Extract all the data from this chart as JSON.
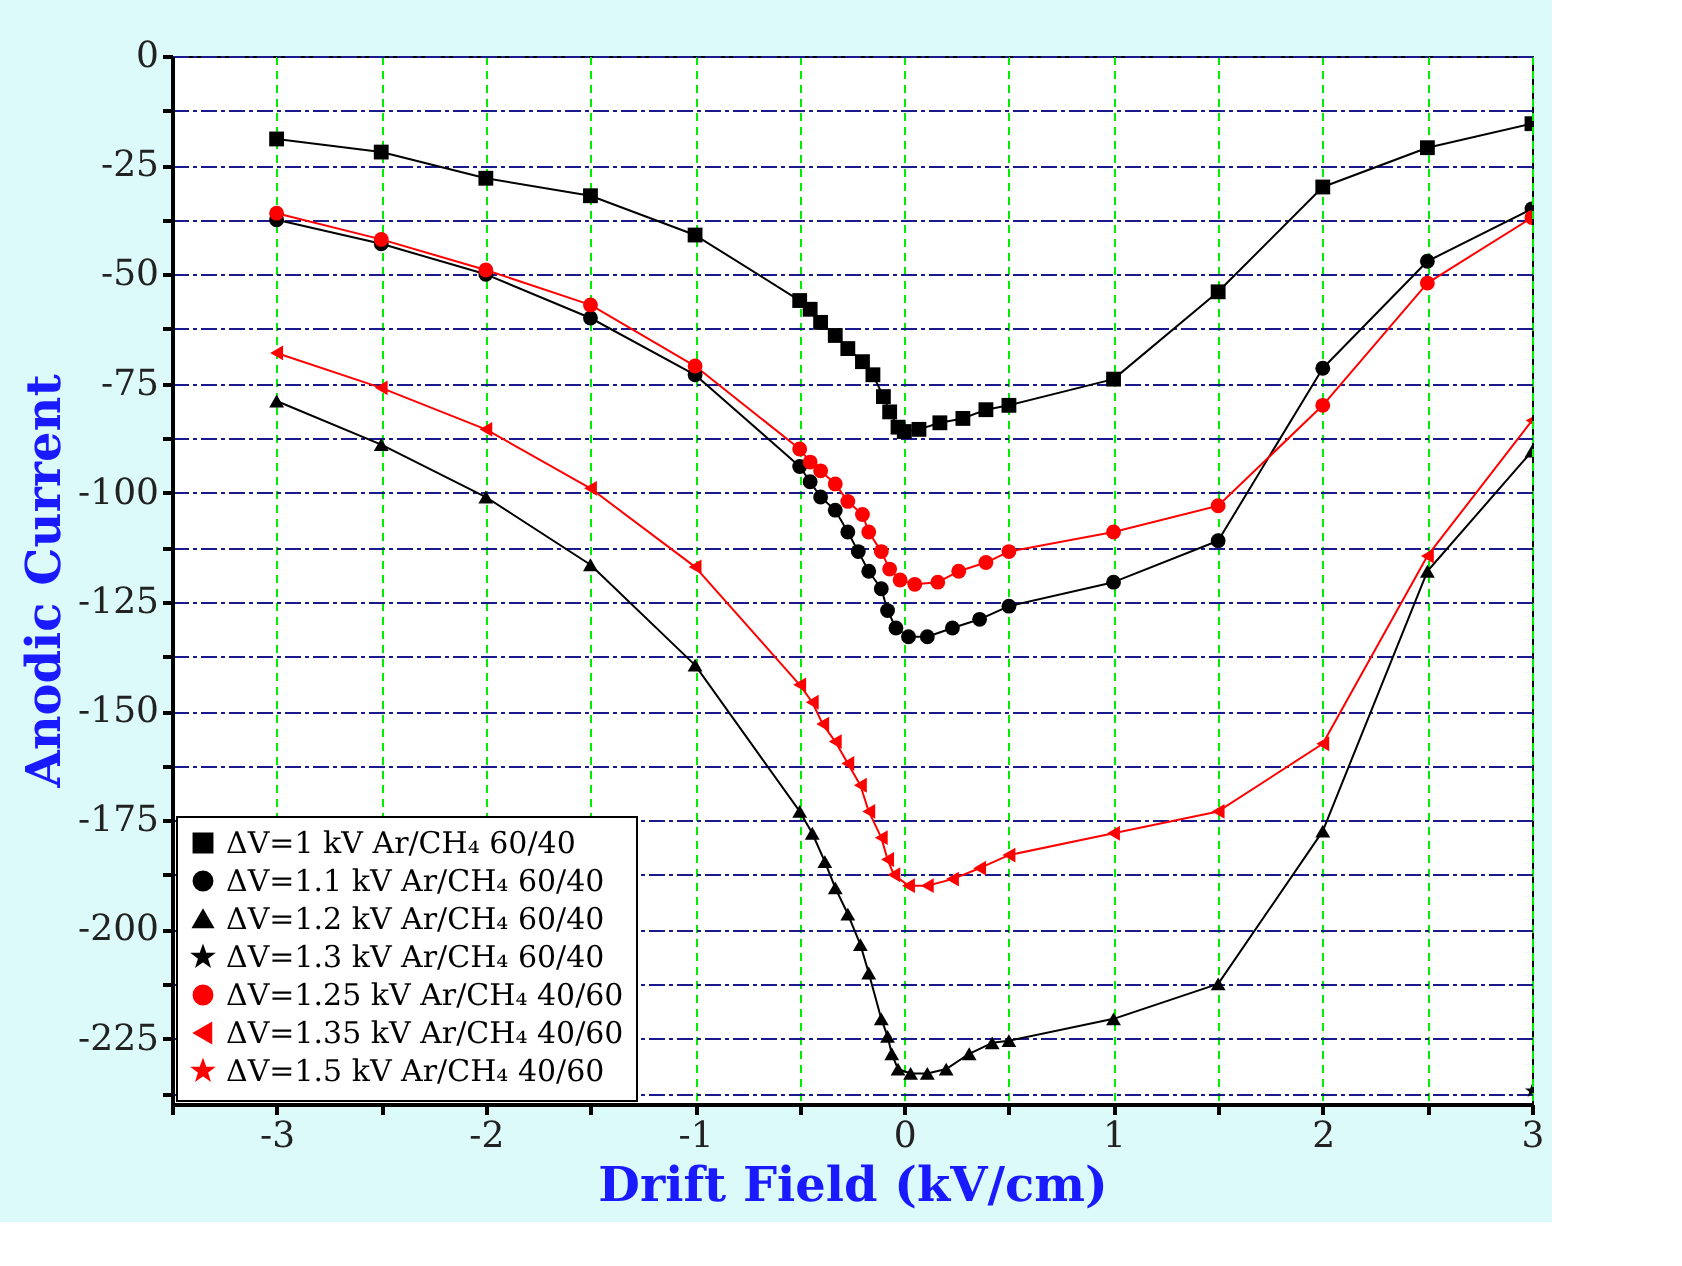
{
  "chart_data": {
    "type": "line",
    "xlabel": "Drift Field (kV/cm)",
    "ylabel": "Anodic Current",
    "xlim": [
      -3.5,
      3
    ],
    "ylim": [
      -240,
      0
    ],
    "xticks": [
      {
        "value": -3.5,
        "label": null
      },
      -3,
      {
        "value": -2.5,
        "label": null
      },
      -2,
      {
        "value": -1.5,
        "label": null
      },
      -1,
      {
        "value": -0.5,
        "label": null
      },
      0,
      {
        "value": 0.5,
        "label": null
      },
      1,
      {
        "value": 1.5,
        "label": null
      },
      2,
      {
        "value": 2.5,
        "label": null
      },
      3
    ],
    "yticks": [
      -225,
      {
        "value": -212.5,
        "label": null
      },
      -200,
      {
        "value": -187.5,
        "label": null
      },
      -175,
      {
        "value": -162.5,
        "label": null
      },
      -150,
      {
        "value": -137.5,
        "label": null
      },
      -125,
      {
        "value": -112.5,
        "label": null
      },
      -100,
      {
        "value": -87.5,
        "label": null
      },
      -75,
      {
        "value": -62.5,
        "label": null
      },
      -50,
      {
        "value": -37.5,
        "label": null
      },
      -25,
      {
        "value": -12.5,
        "label": null
      },
      0,
      {
        "value": -237.5,
        "label": null
      }
    ],
    "grid": true,
    "legend": "bottom left",
    "series": [
      {
        "name": "ΔV=1 kV Ar/CH₄ 60/40",
        "color": "#000000",
        "marker": "square",
        "x": [
          -3,
          -2.5,
          -2,
          -1.5,
          -1,
          -0.5,
          -0.45,
          -0.4,
          -0.33,
          -0.27,
          -0.2,
          -0.15,
          -0.1,
          -0.07,
          -0.03,
          0,
          0.07,
          0.17,
          0.28,
          0.39,
          0.5,
          1,
          1.5,
          2,
          2.5,
          3
        ],
        "values": [
          -19,
          -22,
          -28,
          -32,
          -41,
          -56,
          -58,
          -61,
          -64,
          -67,
          -70,
          -73,
          -78,
          -81.5,
          -85,
          -86,
          -85.5,
          -84,
          -83,
          -81,
          -80,
          -74,
          -54,
          -30,
          -21,
          -15.5
        ]
      },
      {
        "name": "ΔV=1.1 kV Ar/CH₄ 60/40",
        "color": "#000000",
        "marker": "circle",
        "x": [
          -3,
          -2.5,
          -2,
          -1.5,
          -1,
          -0.5,
          -0.45,
          -0.4,
          -0.33,
          -0.27,
          -0.22,
          -0.17,
          -0.11,
          -0.08,
          -0.04,
          0.02,
          0.11,
          0.23,
          0.36,
          0.5,
          1,
          1.5,
          2,
          2.5,
          3
        ],
        "values": [
          -37.5,
          -43,
          -50,
          -60,
          -73,
          -94,
          -97.5,
          -101,
          -104,
          -109,
          -113.5,
          -118,
          -122,
          -127,
          -131,
          -133,
          -133,
          -131,
          -129,
          -126,
          -120.5,
          -111,
          -71.5,
          -47,
          -35
        ]
      },
      {
        "name": "ΔV=1.2 kV Ar/CH₄ 60/40",
        "color": "#000000",
        "marker": "triangle",
        "x": [
          -3,
          -2.5,
          -2,
          -1.5,
          -1,
          -0.5,
          -0.44,
          -0.38,
          -0.33,
          -0.27,
          -0.21,
          -0.17,
          -0.11,
          -0.08,
          -0.06,
          -0.03,
          0.03,
          0.11,
          0.2,
          0.31,
          0.42,
          0.5,
          1,
          1.5,
          2,
          2.5,
          3
        ],
        "values": [
          -79,
          -89,
          -101,
          -116.5,
          -139.5,
          -173,
          -178,
          -184.5,
          -190.5,
          -196.5,
          -203.5,
          -210,
          -220.5,
          -224.5,
          -228.5,
          -232,
          -233,
          -233,
          -232,
          -228.5,
          -226,
          -225.5,
          -220.5,
          -212.5,
          -177.5,
          -118,
          -90.5
        ]
      },
      {
        "name": "ΔV=1.3 kV Ar/CH₄ 60/40",
        "color": "#000000",
        "marker": "star",
        "x": [
          3
        ],
        "values": [
          -237
        ]
      },
      {
        "name": "ΔV=1.25 kV Ar/CH₄ 40/60",
        "color": "#ff0000",
        "marker": "circle",
        "x": [
          -3,
          -2.5,
          -2,
          -1.5,
          -1,
          -0.5,
          -0.45,
          -0.4,
          -0.33,
          -0.27,
          -0.2,
          -0.17,
          -0.11,
          -0.07,
          -0.02,
          0.05,
          0.16,
          0.26,
          0.39,
          0.5,
          1,
          1.5,
          2,
          2.5,
          3
        ],
        "values": [
          -36,
          -42,
          -49,
          -57,
          -71,
          -90,
          -93,
          -95,
          -98,
          -102,
          -105,
          -109,
          -113.5,
          -117.5,
          -120,
          -121,
          -120.5,
          -118,
          -116,
          -113.5,
          -109,
          -103,
          -80,
          -52,
          -37
        ]
      },
      {
        "name": "ΔV=1.35 kV Ar/CH₄ 40/60",
        "color": "#ff0000",
        "marker": "triangle-left",
        "x": [
          -3,
          -2.5,
          -2,
          -1.5,
          -1,
          -0.5,
          -0.44,
          -0.39,
          -0.33,
          -0.27,
          -0.21,
          -0.17,
          -0.11,
          -0.08,
          -0.05,
          0.02,
          0.11,
          0.23,
          0.36,
          0.5,
          1,
          1.5,
          2,
          2.5,
          3
        ],
        "values": [
          -68,
          -76,
          -85.5,
          -99,
          -117,
          -144,
          -148,
          -153,
          -157,
          -162,
          -167,
          -173,
          -179,
          -184,
          -187.5,
          -190,
          -190,
          -188.5,
          -186,
          -183,
          -178,
          -173,
          -157.5,
          -114.5,
          -83.5
        ]
      },
      {
        "name": "ΔV=1.5 kV Ar/CH₄ 40/60",
        "color": "#ff0000",
        "marker": "star"
      }
    ]
  }
}
